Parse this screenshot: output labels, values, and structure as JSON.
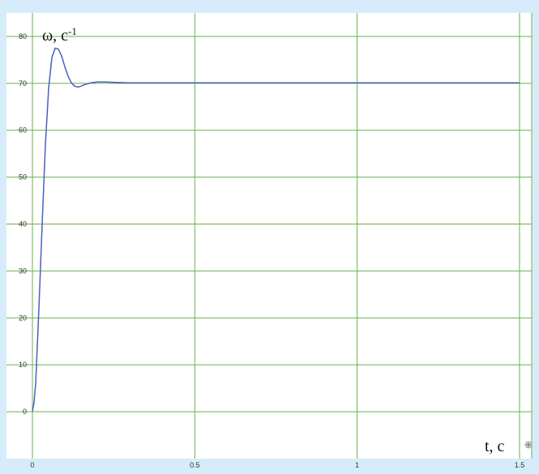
{
  "chart_data": {
    "type": "line",
    "title": "",
    "ylabel_base": "ω, c",
    "ylabel_sup": "-1",
    "xlabel": "t, c",
    "xlim": [
      0,
      1.5
    ],
    "ylim": [
      -10,
      85
    ],
    "grid": true,
    "x_ticks": [
      {
        "value": 0,
        "label": "0"
      },
      {
        "value": 0.5,
        "label": "0.5"
      },
      {
        "value": 1,
        "label": "1"
      },
      {
        "value": 1.5,
        "label": "1.5"
      }
    ],
    "y_ticks": [
      {
        "value": 0,
        "label": "0"
      },
      {
        "value": 10,
        "label": "10"
      },
      {
        "value": 20,
        "label": "20"
      },
      {
        "value": 30,
        "label": "30"
      },
      {
        "value": 40,
        "label": "40"
      },
      {
        "value": 50,
        "label": "50"
      },
      {
        "value": 60,
        "label": "60"
      },
      {
        "value": 70,
        "label": "70"
      },
      {
        "value": 80,
        "label": "80"
      }
    ],
    "series": [
      {
        "name": "",
        "color": "#4a5fc1",
        "x": [
          0,
          0.005,
          0.01,
          0.02,
          0.03,
          0.04,
          0.05,
          0.06,
          0.07,
          0.08,
          0.09,
          0.1,
          0.11,
          0.12,
          0.13,
          0.14,
          0.15,
          0.16,
          0.18,
          0.2,
          0.22,
          0.25,
          0.3,
          0.4,
          0.6,
          0.8,
          1.0,
          1.2,
          1.4,
          1.5
        ],
        "y": [
          0,
          2,
          6,
          22,
          40,
          57,
          69,
          75.5,
          77.5,
          77.3,
          75.8,
          73.5,
          71.5,
          70.1,
          69.4,
          69.2,
          69.4,
          69.7,
          70.1,
          70.3,
          70.3,
          70.2,
          70.1,
          70.1,
          70.1,
          70.1,
          70.1,
          70.1,
          70.1,
          70.1
        ]
      }
    ],
    "colors": {
      "background": "#d6ecfa",
      "plot_area": "#ffffff",
      "grid": "#6ab04c",
      "line": "#4a5fc1"
    }
  }
}
